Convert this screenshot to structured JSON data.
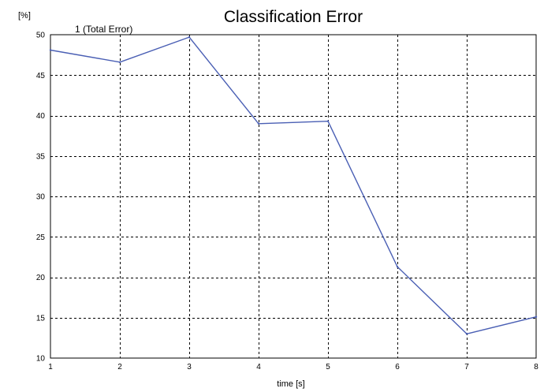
{
  "chart_data": {
    "type": "line",
    "title": "Classification Error",
    "xlabel": "time [s]",
    "ylabel": "[%]",
    "x": [
      1,
      2,
      3,
      4,
      5,
      6,
      7,
      8
    ],
    "xlim": [
      1,
      8
    ],
    "ylim": [
      10,
      50
    ],
    "xticks": [
      "1",
      "2",
      "3",
      "4",
      "5",
      "6",
      "7",
      "8"
    ],
    "yticks": [
      "10",
      "15",
      "20",
      "25",
      "30",
      "35",
      "40",
      "45",
      "50"
    ],
    "grid": true,
    "series": [
      {
        "name": "1 (Total Error)",
        "color": "#4a5fb4",
        "values": [
          48.1,
          46.6,
          49.7,
          39.0,
          39.3,
          21.3,
          13.0,
          15.1
        ]
      }
    ]
  }
}
